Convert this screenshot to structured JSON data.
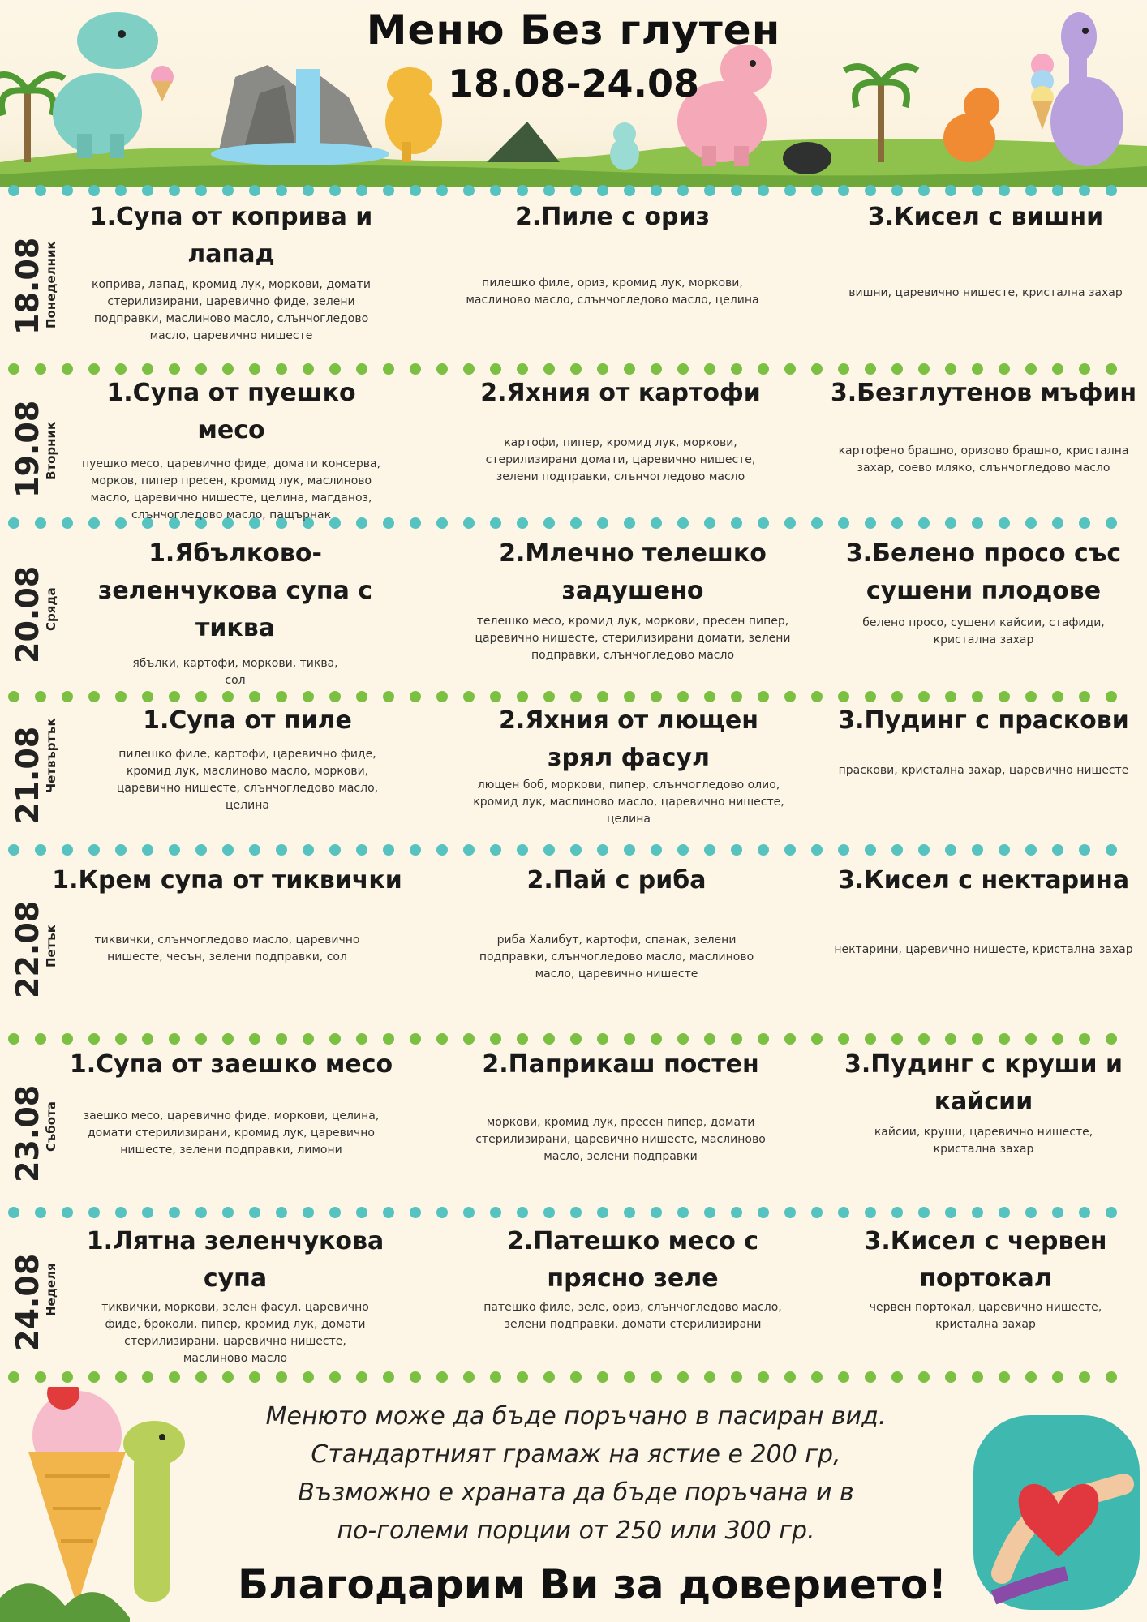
{
  "header": {
    "title": "Меню Без глутен",
    "dates": "18.08-24.08"
  },
  "days": [
    {
      "date": "18.08",
      "weekday": "Понеделник",
      "dishes": [
        {
          "title": "1.Супа от коприва и лапад",
          "ingredients": "коприва, лапад, кромид лук, моркови, домати стерилизирани, царевично фиде, зелени подправки, маслиново масло, слънчогледово масло, царевично нишесте"
        },
        {
          "title": "2.Пиле с ориз",
          "ingredients": "пилешко филе, ориз, кромид лук, моркови, маслиново масло, слънчогледово масло, целина"
        },
        {
          "title": "3.Кисел с вишни",
          "ingredients": "вишни, царевично нишесте, кристална захар"
        }
      ]
    },
    {
      "date": "19.08",
      "weekday": "Вторник",
      "dishes": [
        {
          "title": "1.Супа от пуешко месо",
          "ingredients": "пуешко месо, царевично фиде, домати консерва, морков, пипер пресен, кромид лук, маслиново масло, царевично нишесте, целина, магданоз, слънчогледово масло, пащърнак"
        },
        {
          "title": "2.Яхния от картофи",
          "ingredients": "картофи, пипер, кромид лук, моркови, стерилизирани домати, царевично нишесте, зелени подправки, слънчогледово масло"
        },
        {
          "title": "3.Безглутенов мъфин",
          "ingredients": "картофено брашно, оризово брашно, кристална захар, соево мляко, слънчогледово масло"
        }
      ]
    },
    {
      "date": "20.08",
      "weekday": "Сряда",
      "dishes": [
        {
          "title": "1.Ябълково-зеленчукова супа с тиква",
          "ingredients": "ябълки, картофи, моркови, тиква, сол"
        },
        {
          "title": "2.Млечно телешко задушено",
          "ingredients": "телешко месо, кромид лук, моркови, пресен пипер, царевично нишесте, стерилизирани домати, зелени подправки, слънчогледово масло"
        },
        {
          "title": "3.Белено просо със сушени плодове",
          "ingredients": "белено просо, сушени кайсии, стафиди, кристална захар"
        }
      ]
    },
    {
      "date": "21.08",
      "weekday": "Четвъртък",
      "dishes": [
        {
          "title": "1.Супа от пиле",
          "ingredients": "пилешко филе, картофи, царевично фиде, кромид лук, маслиново масло, моркови, царевично нишесте, слънчогледово масло, целина"
        },
        {
          "title": "2.Яхния от лющен зрял фасул",
          "ingredients": "лющен боб, моркови, пипер, слънчогледово олио, кромид лук, маслиново масло, царевично нишесте, целина"
        },
        {
          "title": "3.Пудинг с праскови",
          "ingredients": "праскови, кристална захар, царевично нишесте"
        }
      ]
    },
    {
      "date": "22.08",
      "weekday": "Петък",
      "dishes": [
        {
          "title": "1.Крем супа от тиквички",
          "ingredients": "тиквички, слънчогледово масло, царевично нишесте, чесън, зелени подправки, сол"
        },
        {
          "title": "2.Пай с риба",
          "ingredients": "риба Халибут, картофи, спанак, зелени подправки, слънчогледово масло, маслиново масло, царевично нишесте"
        },
        {
          "title": "3.Кисел с нектарина",
          "ingredients": "нектарини, царевично нишесте, кристална захар"
        }
      ]
    },
    {
      "date": "23.08",
      "weekday": "Събота",
      "dishes": [
        {
          "title": "1.Супа от заешко месо",
          "ingredients": "заешко месо, царевично фиде, моркови, целина, домати стерилизирани, кромид лук, царевично нишесте, зелени подправки, лимони"
        },
        {
          "title": "2.Паприкаш постен",
          "ingredients": "моркови, кромид лук, пресен пипер, домати стерилизирани, царевично нишесте, маслиново масло, зелени подправки"
        },
        {
          "title": "3.Пудинг с круши и кайсии",
          "ingredients": "кайсии, круши, царевично нишесте, кристална захар"
        }
      ]
    },
    {
      "date": "24.08",
      "weekday": "Неделя",
      "dishes": [
        {
          "title": "1.Лятна зеленчукова супа",
          "ingredients": "тиквички, моркови, зелен фасул, царевично фиде, броколи, пипер, кромид лук, домати стерилизирани, царевично нишесте, маслиново масло"
        },
        {
          "title": "2.Патешко месо с прясно зеле",
          "ingredients": "патешко филе, зеле, ориз, слънчогледово масло, зелени подправки, домати стерилизирани"
        },
        {
          "title": "3.Кисел с червен портокал",
          "ingredients": "червен портокал, царевично нишесте, кристална захар"
        }
      ]
    }
  ],
  "footer": {
    "note_lines": [
      "Менюто може да бъде поръчано в пасиран вид.",
      "Стандартният грамаж на ястие е 200 гр,",
      "Възможно е храната да бъде поръчана и в",
      "по-големи порции от 250 или 300 гр."
    ],
    "thanks": "Благодарим Ви за доверието!"
  },
  "colors": {
    "dot_green": "#7cc043",
    "dot_teal": "#56c3c0",
    "background": "#fdf6e6"
  },
  "icons": [
    "dinosaur-icon",
    "waterfall-icon",
    "palm-tree-icon",
    "ice-cream-icon",
    "heart-hands-icon"
  ]
}
